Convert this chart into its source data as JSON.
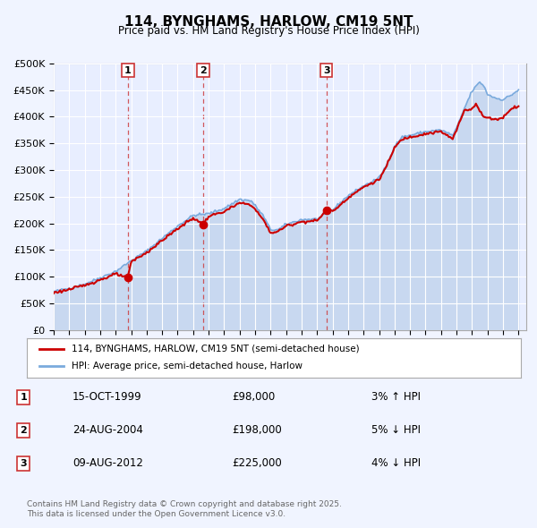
{
  "title": "114, BYNGHAMS, HARLOW, CM19 5NT",
  "subtitle": "Price paid vs. HM Land Registry's House Price Index (HPI)",
  "legend_label_red": "114, BYNGHAMS, HARLOW, CM19 5NT (semi-detached house)",
  "legend_label_blue": "HPI: Average price, semi-detached house, Harlow",
  "footer": "Contains HM Land Registry data © Crown copyright and database right 2025.\nThis data is licensed under the Open Government Licence v3.0.",
  "transactions": [
    {
      "num": 1,
      "date": "15-OCT-1999",
      "price": 98000,
      "pct": "3%",
      "dir": "↑",
      "year": 1999.79
    },
    {
      "num": 2,
      "date": "24-AUG-2004",
      "price": 198000,
      "pct": "5%",
      "dir": "↓",
      "year": 2004.65
    },
    {
      "num": 3,
      "date": "09-AUG-2012",
      "price": 225000,
      "pct": "4%",
      "dir": "↓",
      "year": 2012.61
    }
  ],
  "ylim": [
    0,
    500000
  ],
  "yticks": [
    0,
    50000,
    100000,
    150000,
    200000,
    250000,
    300000,
    350000,
    400000,
    450000,
    500000
  ],
  "xlim_start": 1995.0,
  "xlim_end": 2025.5,
  "background_color": "#f0f4ff",
  "plot_bg": "#e8eeff",
  "red_color": "#cc0000",
  "blue_color": "#7aaadd",
  "fill_color": "#c8d8f0",
  "grid_color": "#ffffff",
  "dashed_color": "#cc3333"
}
